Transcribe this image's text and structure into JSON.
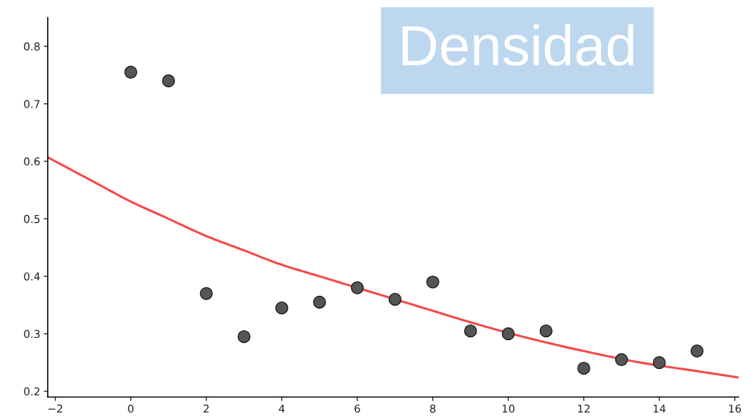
{
  "chart_data": {
    "type": "scatter",
    "title": "Densidad",
    "x": [
      0,
      1,
      2,
      3,
      4,
      5,
      6,
      7,
      8,
      9,
      10,
      11,
      12,
      13,
      14,
      15
    ],
    "series": [
      {
        "color": "#555555",
        "marker": "circle",
        "values": [
          0.755,
          0.74,
          0.37,
          0.295,
          0.345,
          0.355,
          0.38,
          0.36,
          0.39,
          0.305,
          0.3,
          0.305,
          0.24,
          0.255,
          0.25,
          0.27
        ]
      },
      {
        "type": "line",
        "color": "#f44b4b",
        "line_style": "solid",
        "x": [
          -2.2,
          -1,
          0,
          1,
          2,
          3,
          4,
          5,
          6.5,
          8,
          9,
          10.5,
          12,
          13.5,
          15,
          16,
          16.1
        ],
        "values": [
          0.607,
          0.565,
          0.53,
          0.5,
          0.47,
          0.445,
          0.42,
          0.4,
          0.37,
          0.34,
          0.32,
          0.293,
          0.27,
          0.25,
          0.235,
          0.225,
          0.224
        ]
      }
    ],
    "xlim": [
      -2.2,
      16.1
    ],
    "ylim": [
      0.19,
      0.85
    ],
    "xticks": [
      {
        "value": -2,
        "label": "−2"
      },
      0,
      2,
      4,
      6,
      8,
      10,
      12,
      14,
      16
    ],
    "yticks": [
      0.2,
      0.3,
      0.4,
      0.5,
      0.6,
      0.7,
      0.8
    ],
    "grid": false
  }
}
